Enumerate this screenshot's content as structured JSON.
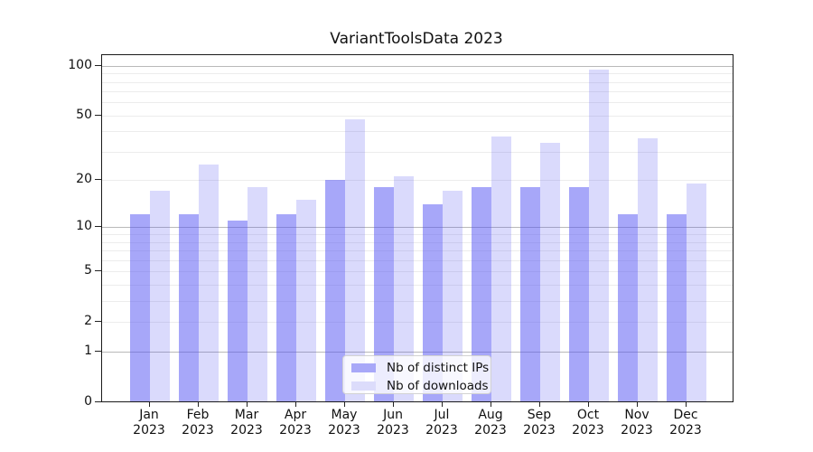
{
  "chart_data": {
    "type": "bar",
    "title": "VariantToolsData 2023",
    "categories": [
      "Jan 2023",
      "Feb 2023",
      "Mar 2023",
      "Apr 2023",
      "May 2023",
      "Jun 2023",
      "Jul 2023",
      "Aug 2023",
      "Sep 2023",
      "Oct 2023",
      "Nov 2023",
      "Dec 2023"
    ],
    "series": [
      {
        "name": "Nb of distinct IPs",
        "color": "#a8a8f8",
        "bar_rgba": "rgba(80,80,243,0.50)",
        "values": [
          12,
          12,
          11,
          12,
          20,
          18,
          14,
          18,
          18,
          18,
          12,
          12
        ]
      },
      {
        "name": "Nb of downloads",
        "color": "#dcdcfb",
        "bar_rgba": "rgba(80,80,243,0.21)",
        "values": [
          17,
          25,
          18,
          15,
          47,
          21,
          17,
          37,
          34,
          94,
          36,
          19
        ]
      }
    ],
    "xlabel": "",
    "ylabel": "",
    "yscale": "symlog",
    "yticks_labeled": [
      0,
      1,
      2,
      5,
      10,
      20,
      50,
      100
    ],
    "grid_major_values": [
      1,
      10,
      100
    ],
    "grid_minor_values": [
      2,
      3,
      4,
      5,
      6,
      7,
      8,
      9,
      20,
      30,
      40,
      50,
      60,
      70,
      80,
      90
    ],
    "ylim": [
      0,
      120
    ],
    "grid": true,
    "legend_position": "lower center",
    "colors": {
      "grid_major": "#b9b9b9",
      "grid_minor": "#ececec",
      "spine": "#1a1a1a",
      "text": "#111111"
    }
  }
}
